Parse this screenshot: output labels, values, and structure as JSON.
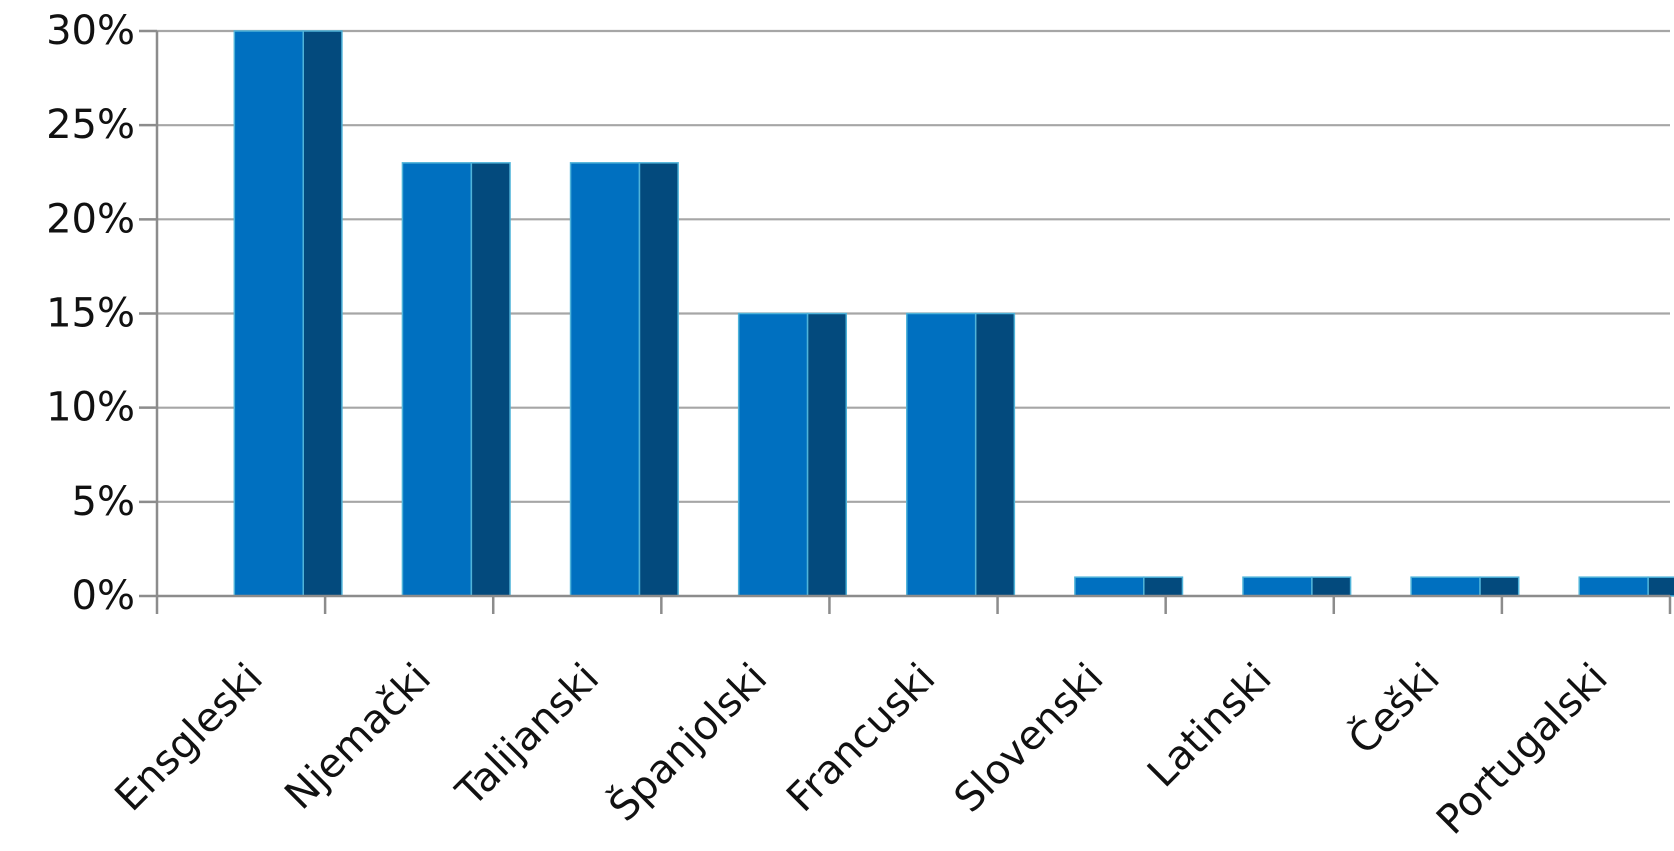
{
  "chart_data": {
    "type": "bar",
    "categories": [
      "Ensgleski",
      "Njemački",
      "Talijanski",
      "Španjolski",
      "Francuski",
      "Slovenski",
      "Latinski",
      "Češki",
      "Portugalski"
    ],
    "values": [
      30,
      23,
      23,
      15,
      15,
      1,
      1,
      1,
      1
    ],
    "ylim": [
      0,
      30
    ],
    "yticks": [
      "0%",
      "5%",
      "10%",
      "15%",
      "20%",
      "25%",
      "30%"
    ],
    "grid": true,
    "legend": "none",
    "colors": {
      "bar_front": "#0070c0",
      "bar_side": "#034a7d",
      "bar_edge": "#4fb3d9"
    }
  }
}
